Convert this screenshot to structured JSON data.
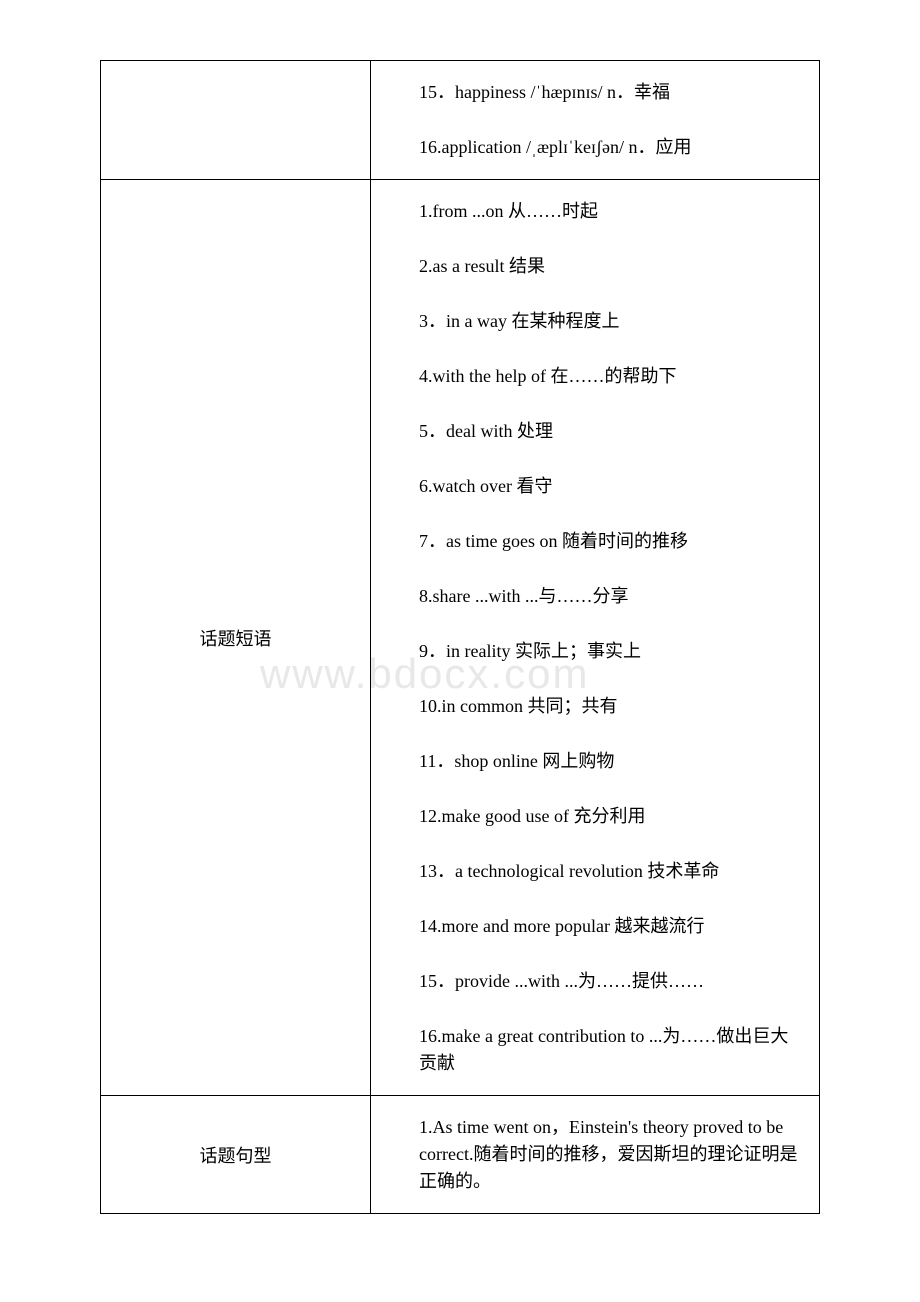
{
  "watermark": "www.bdocx.com",
  "rows": [
    {
      "label": "",
      "items": [
        "15．happiness /ˈhæpɪnɪs/ n．幸福",
        "16.application /ˌæplɪˈkeɪʃən/ n．应用"
      ]
    },
    {
      "label": "话题短语",
      "items": [
        "1.from ...on 从……时起",
        "2.as a result 结果",
        "3．in a way 在某种程度上",
        "4.with the help of 在……的帮助下",
        "5．deal with 处理",
        "6.watch over 看守",
        "7．as time goes on 随着时间的推移",
        "8.share ...with ...与……分享",
        "9．in reality 实际上；事实上",
        "10.in common 共同；共有",
        "11．shop online 网上购物",
        "12.make good use of 充分利用",
        "13．a technological revolution 技术革命",
        "14.more and more popular 越来越流行",
        "15．provide ...with ...为……提供……",
        "16.make a great contribution to ...为……做出巨大贡献"
      ]
    },
    {
      "label": "话题句型",
      "items": [
        "1.As time went on，Einstein's theory proved to be correct.随着时间的推移，爱因斯坦的理论证明是正确的。"
      ]
    }
  ]
}
